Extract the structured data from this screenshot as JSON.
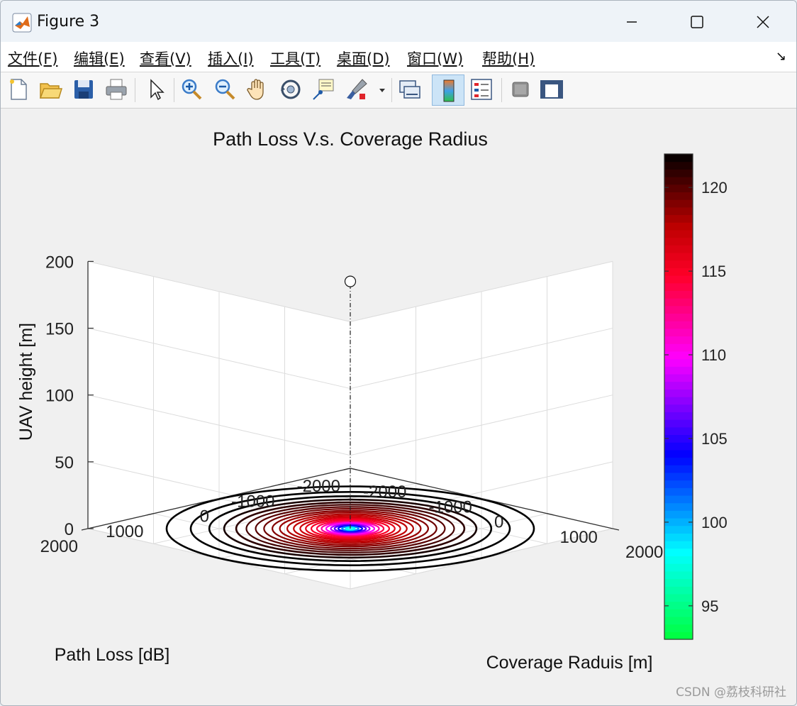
{
  "window": {
    "title": "Figure 3"
  },
  "menu": [
    {
      "label": "文件(F)"
    },
    {
      "label": "编辑(E)"
    },
    {
      "label": "查看(V)"
    },
    {
      "label": "插入(I)"
    },
    {
      "label": "工具(T)"
    },
    {
      "label": "桌面(D)"
    },
    {
      "label": "窗口(W)"
    },
    {
      "label": "帮助(H)"
    }
  ],
  "toolbar": {
    "icons": [
      "new-figure-icon",
      "open-file-icon",
      "save-icon",
      "print-icon",
      "pointer-icon",
      "zoom-in-icon",
      "zoom-out-icon",
      "pan-icon",
      "rotate-3d-icon",
      "data-cursor-icon",
      "brush-icon",
      "link-plot-icon",
      "colorbar-icon",
      "legend-icon",
      "hide-plot-tools-icon",
      "show-plot-tools-icon"
    ]
  },
  "watermark": "CSDN @荔枝科研社",
  "colors": {
    "accent": "#0072bd",
    "titlebar": "#eef3f8"
  },
  "chart_data": {
    "type": "contour",
    "title": "Path Loss V.s. Coverage Radius",
    "xlabel": "Coverage Raduis  [m]",
    "ylabel": "Path Loss [dB]",
    "zlabel": "UAV height  [m]",
    "xlim": [
      -2000,
      2000
    ],
    "ylim": [
      -2000,
      2000
    ],
    "zlim": [
      0,
      200
    ],
    "x_ticks": [
      "-2000",
      "-1000",
      "0",
      "1000",
      "2000"
    ],
    "y_ticks": [
      "-2000",
      "-1000",
      "0",
      "1000",
      "2000"
    ],
    "z_ticks": [
      "0",
      "50",
      "100",
      "150",
      "200"
    ],
    "grid": true,
    "uav_marker": {
      "x": 0,
      "y": 0,
      "z": 185
    },
    "contour_levels_radius": [
      {
        "r": 50,
        "level": 98
      },
      {
        "r": 90,
        "level": 101
      },
      {
        "r": 130,
        "level": 104
      },
      {
        "r": 170,
        "level": 106
      },
      {
        "r": 210,
        "level": 108
      },
      {
        "r": 260,
        "level": 110
      },
      {
        "r": 310,
        "level": 112
      },
      {
        "r": 360,
        "level": 114
      },
      {
        "r": 420,
        "level": 115
      },
      {
        "r": 480,
        "level": 116
      },
      {
        "r": 540,
        "level": 117
      },
      {
        "r": 610,
        "level": 117.5
      },
      {
        "r": 680,
        "level": 118
      },
      {
        "r": 760,
        "level": 118.5
      },
      {
        "r": 840,
        "level": 119
      },
      {
        "r": 930,
        "level": 119.5
      },
      {
        "r": 1020,
        "level": 120
      },
      {
        "r": 1120,
        "level": 120.5
      },
      {
        "r": 1230,
        "level": 121
      },
      {
        "r": 1360,
        "level": 121.5
      },
      {
        "r": 1520,
        "level": 122
      },
      {
        "r": 1720,
        "level": 122
      },
      {
        "r": 1980,
        "level": 122
      }
    ],
    "colorbar": {
      "min": 93,
      "max": 122,
      "ticks": [
        "95",
        "100",
        "105",
        "110",
        "115",
        "120"
      ]
    }
  }
}
